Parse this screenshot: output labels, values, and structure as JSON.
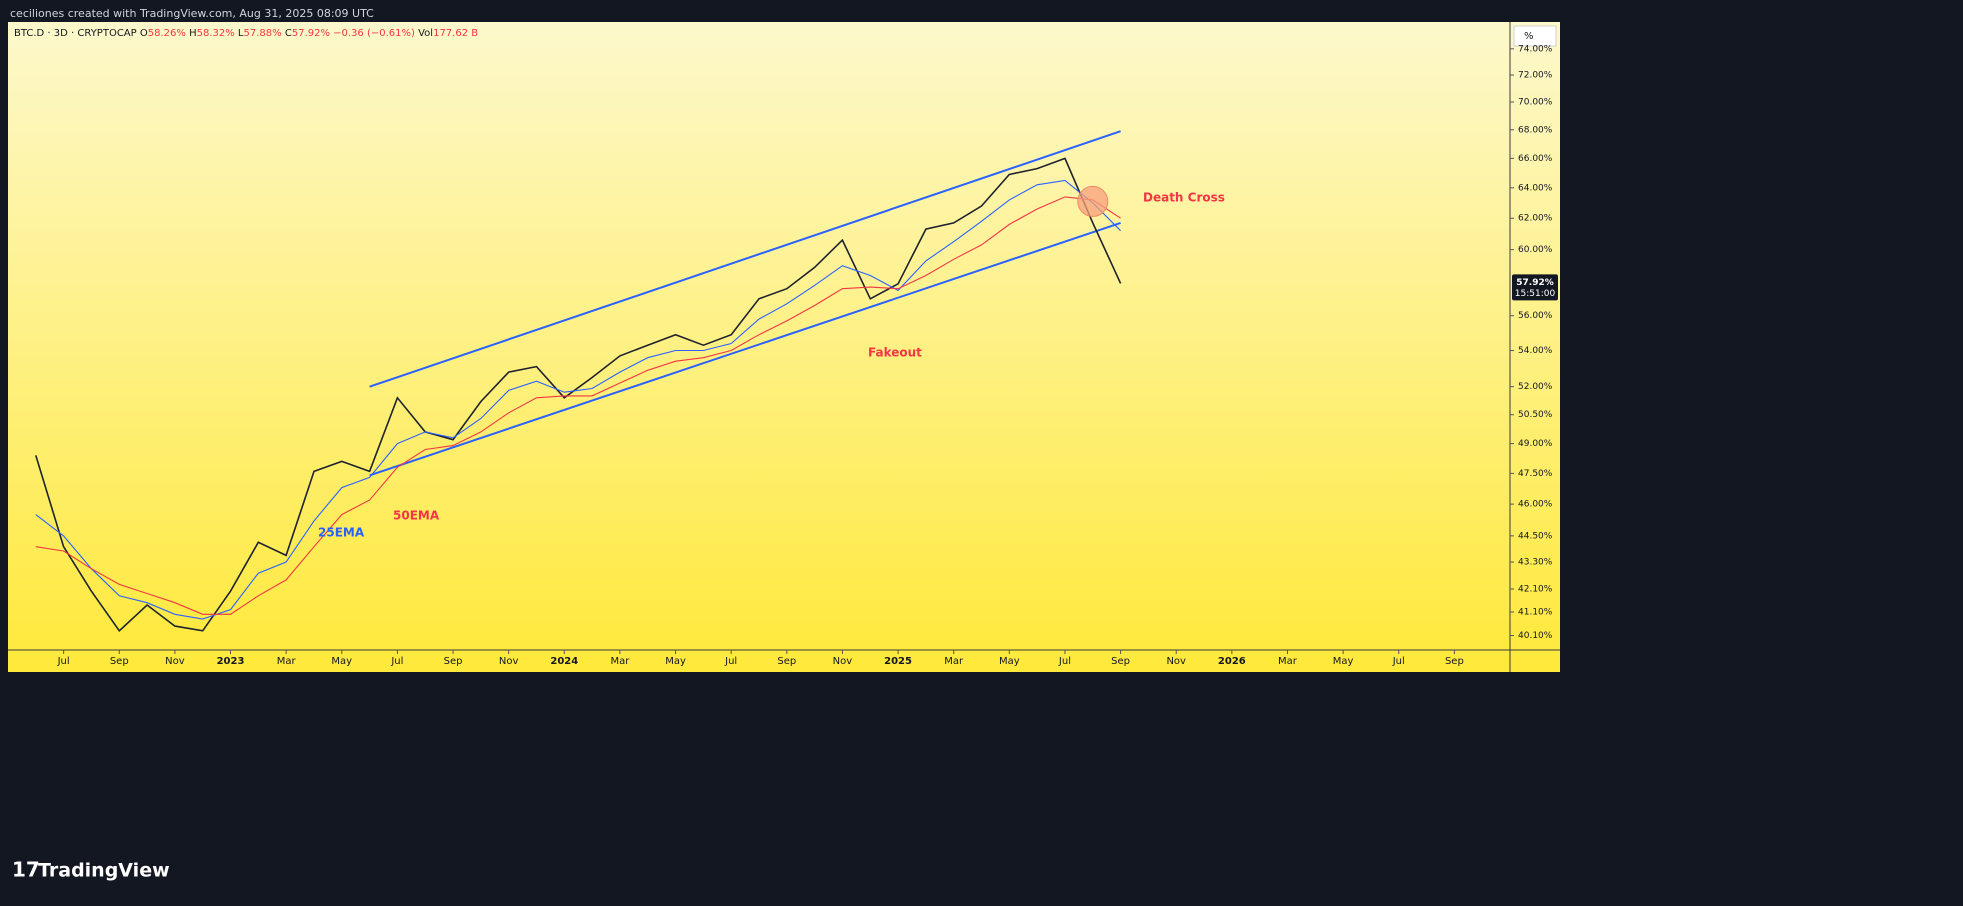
{
  "header": {
    "credit": "ceciliones created with TradingView.com, Aug 31, 2025 08:09 UTC",
    "logo": "TradingView"
  },
  "chart_data": {
    "type": "line",
    "log_scale": true,
    "grid": false,
    "symbol_info": [
      "3D",
      "CRYPTOCAP"
    ],
    "quote": [
      {
        "label": "O",
        "value": "58.26%"
      },
      {
        "label": "H",
        "value": "58.32%"
      },
      {
        "label": "L",
        "value": "57.88%"
      },
      {
        "label": "C",
        "value": "57.92%"
      },
      {
        "label": "",
        "value": "−0.36 (−0.61%)"
      },
      {
        "label": "Vol",
        "value": "177.62 B"
      }
    ],
    "axis_unit": "%",
    "x": [
      "2022-06",
      "2022-07",
      "2022-08",
      "2022-09",
      "2022-10",
      "2022-11",
      "2022-12",
      "2023-01",
      "2023-02",
      "2023-03",
      "2023-04",
      "2023-05",
      "2023-06",
      "2023-07",
      "2023-08",
      "2023-09",
      "2023-10",
      "2023-11",
      "2023-12",
      "2024-01",
      "2024-02",
      "2024-03",
      "2024-04",
      "2024-05",
      "2024-06",
      "2024-07",
      "2024-08",
      "2024-09",
      "2024-10",
      "2024-11",
      "2024-12",
      "2025-01",
      "2025-02",
      "2025-03",
      "2025-04",
      "2025-05",
      "2025-06",
      "2025-07",
      "2025-08",
      "2025-09"
    ],
    "series": [
      {
        "name": "BTC.D",
        "color": "#1e222d",
        "values": [
          48.4,
          44.0,
          42.0,
          40.3,
          41.4,
          40.5,
          40.3,
          42.0,
          44.2,
          43.6,
          47.6,
          48.1,
          47.6,
          51.4,
          49.6,
          49.2,
          51.2,
          52.8,
          53.1,
          51.4,
          52.5,
          53.7,
          54.3,
          54.9,
          54.3,
          54.9,
          57.0,
          57.6,
          58.9,
          60.6,
          57.0,
          57.9,
          61.3,
          61.7,
          62.8,
          64.9,
          65.3,
          66.0,
          61.7,
          57.92
        ]
      },
      {
        "name": "25EMA",
        "color": "#2962ff",
        "values": [
          45.5,
          44.5,
          43.0,
          41.8,
          41.5,
          41.0,
          40.8,
          41.2,
          42.8,
          43.3,
          45.2,
          46.8,
          47.3,
          49.0,
          49.6,
          49.3,
          50.3,
          51.8,
          52.3,
          51.7,
          51.9,
          52.8,
          53.6,
          54.0,
          54.0,
          54.4,
          55.8,
          56.7,
          57.8,
          59.0,
          58.4,
          57.5,
          59.3,
          60.5,
          61.8,
          63.2,
          64.2,
          64.5,
          63.0,
          61.2
        ]
      },
      {
        "name": "50EMA",
        "color": "#f23645",
        "values": [
          44.0,
          43.8,
          43.0,
          42.3,
          41.9,
          41.5,
          41.0,
          41.0,
          41.8,
          42.5,
          44.0,
          45.5,
          46.2,
          47.8,
          48.7,
          48.9,
          49.6,
          50.6,
          51.4,
          51.5,
          51.5,
          52.2,
          52.9,
          53.4,
          53.6,
          54.0,
          54.9,
          55.7,
          56.6,
          57.6,
          57.7,
          57.6,
          58.4,
          59.4,
          60.3,
          61.6,
          62.6,
          63.4,
          63.2,
          62.0
        ]
      }
    ],
    "channel": {
      "color": "#2962ff",
      "x": [
        "2023-06",
        "2025-09"
      ],
      "upper": [
        52.0,
        67.9
      ],
      "lower": [
        47.4,
        61.7
      ]
    },
    "marker": {
      "x": "2025-08",
      "y": 63.1,
      "color": "#f7a07e"
    },
    "annotations": [
      "Death Cross",
      "Fakeout"
    ],
    "price_tag": {
      "value": 57.92,
      "label": "57.92%",
      "time": "15:51:00"
    },
    "xlim": [
      "2022-05",
      "2026-11"
    ],
    "xticks": [
      {
        "value": "2022-07",
        "label": "Jul"
      },
      {
        "value": "2022-09",
        "label": "Sep"
      },
      {
        "value": "2022-11",
        "label": "Nov"
      },
      {
        "value": "2023-01",
        "label": "2023"
      },
      {
        "value": "2023-03",
        "label": "Mar"
      },
      {
        "value": "2023-05",
        "label": "May"
      },
      {
        "value": "2023-07",
        "label": "Jul"
      },
      {
        "value": "2023-09",
        "label": "Sep"
      },
      {
        "value": "2023-11",
        "label": "Nov"
      },
      {
        "value": "2024-01",
        "label": "2024"
      },
      {
        "value": "2024-03",
        "label": "Mar"
      },
      {
        "value": "2024-05",
        "label": "May"
      },
      {
        "value": "2024-07",
        "label": "Jul"
      },
      {
        "value": "2024-09",
        "label": "Sep"
      },
      {
        "value": "2024-11",
        "label": "Nov"
      },
      {
        "value": "2025-01",
        "label": "2025"
      },
      {
        "value": "2025-03",
        "label": "Mar"
      },
      {
        "value": "2025-05",
        "label": "May"
      },
      {
        "value": "2025-07",
        "label": "Jul"
      },
      {
        "value": "2025-09",
        "label": "Sep"
      },
      {
        "value": "2025-11",
        "label": "Nov"
      },
      {
        "value": "2026-01",
        "label": "2026"
      },
      {
        "value": "2026-03",
        "label": "Mar"
      },
      {
        "value": "2026-05",
        "label": "May"
      },
      {
        "value": "2026-07",
        "label": "Jul"
      },
      {
        "value": "2026-09",
        "label": "Sep"
      }
    ],
    "ylim": [
      39.5,
      76.1
    ],
    "yticks": [
      {
        "value": 40.1,
        "label": "40.10%"
      },
      {
        "value": 41.1,
        "label": "41.10%"
      },
      {
        "value": 42.1,
        "label": "42.10%"
      },
      {
        "value": 43.3,
        "label": "43.30%"
      },
      {
        "value": 44.5,
        "label": "44.50%"
      },
      {
        "value": 46,
        "label": "46.00%"
      },
      {
        "value": 47.5,
        "label": "47.50%"
      },
      {
        "value": 49,
        "label": "49.00%"
      },
      {
        "value": 50.5,
        "label": "50.50%"
      },
      {
        "value": 52,
        "label": "52.00%"
      },
      {
        "value": 54,
        "label": "54.00%"
      },
      {
        "value": 56,
        "label": "56.00%"
      },
      {
        "value": 60,
        "label": "60.00%"
      },
      {
        "value": 62,
        "label": "62.00%"
      },
      {
        "value": 64,
        "label": "64.00%"
      },
      {
        "value": 66,
        "label": "66.00%"
      },
      {
        "value": 68,
        "label": "68.00%"
      },
      {
        "value": 70,
        "label": "70.00%"
      },
      {
        "value": 72,
        "label": "72.00%"
      },
      {
        "value": 74,
        "label": "74.00%"
      }
    ]
  }
}
